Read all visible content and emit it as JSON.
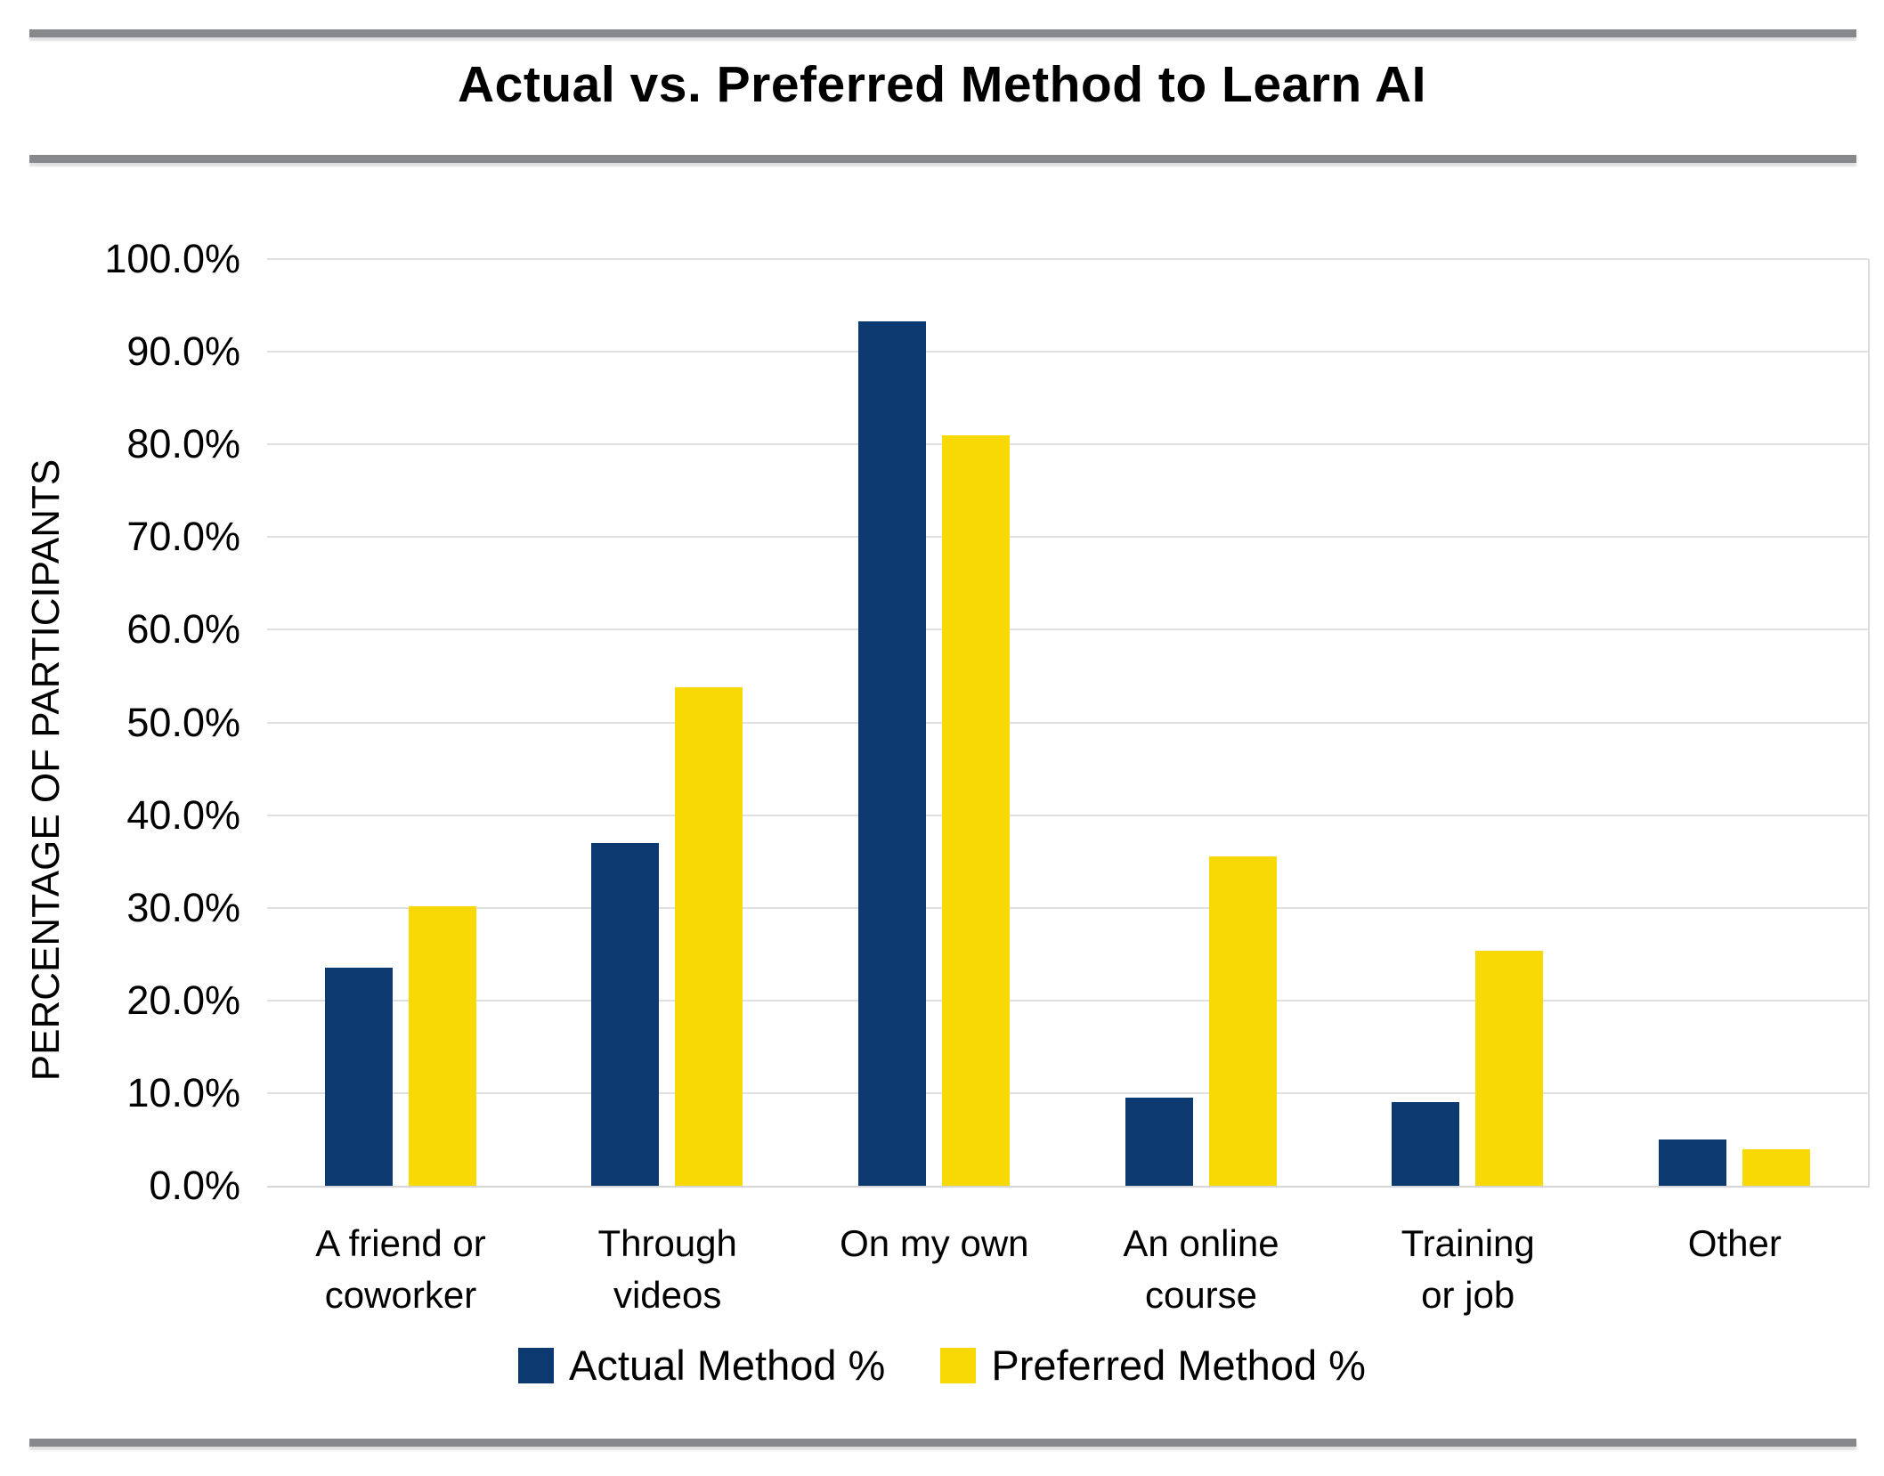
{
  "title": "Actual vs. Preferred Method to Learn AI",
  "chart_data": {
    "type": "bar",
    "title": "Actual vs. Preferred Method to Learn AI",
    "xlabel": "",
    "ylabel": "PERCENTAGE OF PARTICIPANTS",
    "ylim": [
      0,
      100
    ],
    "grid": "horizontal",
    "legend_position": "bottom-center",
    "categories": [
      "A friend or coworker",
      "Through videos",
      "On my own",
      "An online course",
      "Training or job",
      "Other"
    ],
    "category_lines": [
      [
        "A friend or",
        "coworker"
      ],
      [
        "Through",
        "videos"
      ],
      [
        "On my own"
      ],
      [
        "An online",
        "course"
      ],
      [
        "Training",
        "or job"
      ],
      [
        "Other"
      ]
    ],
    "series": [
      {
        "name": "Actual Method %",
        "color": "#0C3A70",
        "values": [
          23.5,
          37.0,
          93.3,
          9.5,
          9.0,
          5.0
        ]
      },
      {
        "name": "Preferred Method %",
        "color": "#F9D905",
        "values": [
          30.2,
          53.8,
          81.0,
          35.5,
          25.4,
          3.9
        ]
      }
    ],
    "y_ticks": [
      {
        "value": 100,
        "label": "100.0%"
      },
      {
        "value": 90,
        "label": "90.0%"
      },
      {
        "value": 80,
        "label": "80.0%"
      },
      {
        "value": 70,
        "label": "70.0%"
      },
      {
        "value": 60,
        "label": "60.0%"
      },
      {
        "value": 50,
        "label": "50.0%"
      },
      {
        "value": 40,
        "label": "40.0%"
      },
      {
        "value": 30,
        "label": "30.0%"
      },
      {
        "value": 20,
        "label": "20.0%"
      },
      {
        "value": 10,
        "label": "10.0%"
      },
      {
        "value": 0,
        "label": "0.0%"
      }
    ],
    "colors": {
      "actual": "#0C3A70",
      "preferred": "#F9D905",
      "gridline": "#E0E0E0",
      "axis_line": "#D6D6D6",
      "divider_rule": "#87888C",
      "text": "#000000",
      "background": "#FFFFFF"
    }
  }
}
